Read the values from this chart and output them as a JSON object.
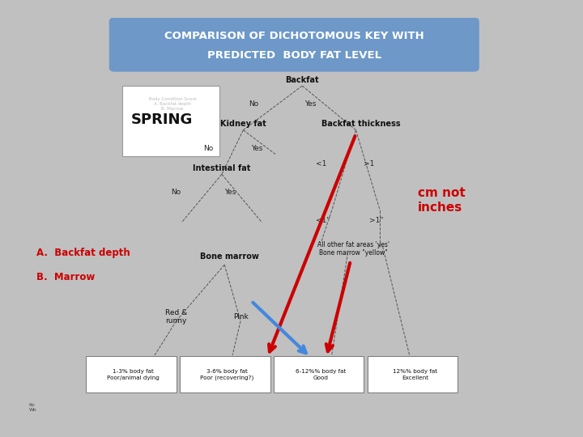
{
  "title_line1": "COMPARISON OF DICHOTOMOUS KEY WITH",
  "title_line2": "PREDICTED  BODY FAT LEVEL",
  "title_bg_color": "#6d98c8",
  "title_text_color": "#ffffff",
  "outer_bg_color": "#c0c0c0",
  "inner_bg_color": "#ffffff",
  "spring_label": "SPRING",
  "label_A": "A.  Backfat depth",
  "label_B": "B.  Marrow",
  "label_color": "#cc0000",
  "cm_not_inches": "cm not\ninches",
  "cm_color": "#cc0000",
  "box_labels": [
    "1-3% body fat\nPoor/animal dying",
    "3-6% body fat\nPoor (recovering?)",
    "6-12%% body fat\nGood",
    "12%% body fat\nExcellent"
  ]
}
